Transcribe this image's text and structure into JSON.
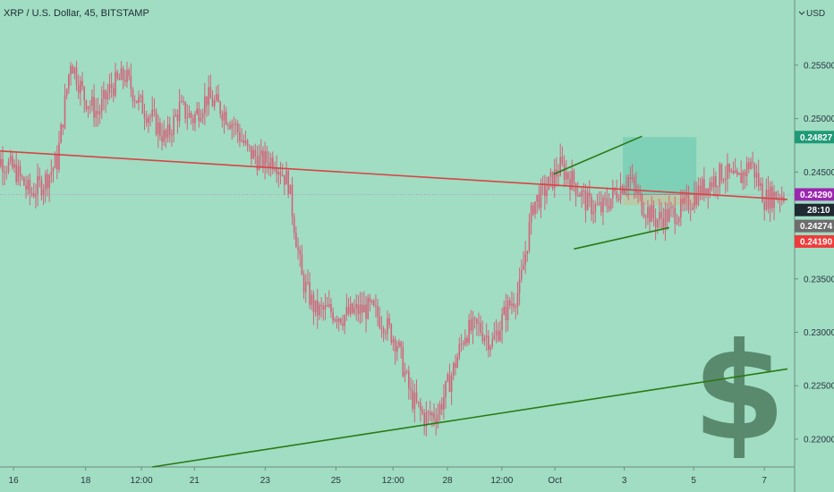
{
  "header": {
    "title": "XRP / U.S. Dollar, 45, BITSTAMP"
  },
  "currency": {
    "label": "USD",
    "dropdown_icon": "chevron-down-icon"
  },
  "colors": {
    "background": "#a0ddc3",
    "candle": "#d2637a",
    "trendline_red": "#d64545",
    "channel_green": "#2a7a14",
    "target_zone": "#7ccfb5",
    "stop_zone": "#b9c9a4",
    "dollar_sign": "#5a8a6e",
    "tag_target": "#1f9a76",
    "tag_current": "#9c27b0",
    "tag_countdown": "#1f2a33",
    "tag_gray": "#6d6d6d",
    "tag_red": "#ef3b3b"
  },
  "chart_data": {
    "type": "candlestick",
    "title": "XRP / U.S. Dollar, 45, BITSTAMP",
    "y_axis": {
      "unit": "USD",
      "range": [
        0.2174,
        0.2611
      ],
      "ticks": [
        "0.25500",
        "0.25000",
        "0.24500",
        "0.24000",
        "0.23500",
        "0.23000",
        "0.22500",
        "0.22000"
      ]
    },
    "x_axis": {
      "ticks": [
        "16",
        "18",
        "12:00",
        "21",
        "23",
        "25",
        "12:00",
        "28",
        "12:00",
        "Oct",
        "3",
        "5",
        "7"
      ]
    },
    "price_path": [
      [
        -1,
        0.2465
      ],
      [
        0,
        0.246
      ],
      [
        1,
        0.245
      ],
      [
        2,
        0.243
      ],
      [
        3,
        0.244
      ],
      [
        4,
        0.246
      ],
      [
        5,
        0.2555
      ],
      [
        6,
        0.252
      ],
      [
        7,
        0.2505
      ],
      [
        8,
        0.253
      ],
      [
        9,
        0.254
      ],
      [
        10,
        0.2515
      ],
      [
        11,
        0.25
      ],
      [
        12,
        0.248
      ],
      [
        13,
        0.251
      ],
      [
        14,
        0.25
      ],
      [
        15,
        0.252
      ],
      [
        16,
        0.251
      ],
      [
        17,
        0.2495
      ],
      [
        18,
        0.247
      ],
      [
        19,
        0.246
      ],
      [
        20,
        0.2462
      ],
      [
        21,
        0.244
      ],
      [
        22,
        0.235
      ],
      [
        23,
        0.232
      ],
      [
        24,
        0.232
      ],
      [
        25,
        0.2315
      ],
      [
        26,
        0.232
      ],
      [
        27,
        0.2322
      ],
      [
        28,
        0.231
      ],
      [
        29,
        0.229
      ],
      [
        30,
        0.224
      ],
      [
        31,
        0.222
      ],
      [
        32,
        0.2225
      ],
      [
        33,
        0.226
      ],
      [
        34,
        0.23
      ],
      [
        35,
        0.2305
      ],
      [
        36,
        0.229
      ],
      [
        37,
        0.232
      ],
      [
        38,
        0.234
      ],
      [
        39,
        0.242
      ],
      [
        40,
        0.2435
      ],
      [
        41,
        0.2455
      ],
      [
        42,
        0.244
      ],
      [
        43,
        0.242
      ],
      [
        44,
        0.2415
      ],
      [
        45,
        0.243
      ],
      [
        46,
        0.2445
      ],
      [
        47,
        0.242
      ],
      [
        48,
        0.2405
      ],
      [
        49,
        0.241
      ],
      [
        50,
        0.2415
      ],
      [
        51,
        0.243
      ],
      [
        52,
        0.244
      ],
      [
        53,
        0.245
      ],
      [
        54,
        0.244
      ],
      [
        55,
        0.246
      ],
      [
        56,
        0.2425
      ],
      [
        57,
        0.2429
      ],
      [
        57.7,
        0.2429
      ]
    ],
    "lines": [
      {
        "name": "resistance-trendline",
        "color": "red",
        "points": [
          [
            -1.2,
            0.24705
          ],
          [
            57.7,
            0.24243
          ]
        ]
      },
      {
        "name": "channel-upper",
        "color": "green",
        "points": [
          [
            40.5,
            0.2448
          ],
          [
            47,
            0.24835
          ]
        ]
      },
      {
        "name": "channel-lower",
        "color": "green",
        "points": [
          [
            42,
            0.2378
          ],
          [
            49,
            0.2398
          ]
        ]
      },
      {
        "name": "support-trendline",
        "color": "green",
        "points": [
          [
            11,
            0.2174
          ],
          [
            57.7,
            0.22657
          ]
        ]
      }
    ],
    "position": {
      "entry": 0.2429,
      "target": 0.24827,
      "stop": 0.2419,
      "x_start": 45.6,
      "x_end": 51
    },
    "price_tags": [
      {
        "name": "target",
        "value": "0.24827",
        "price": 0.24827
      },
      {
        "name": "current",
        "value": "0.24290",
        "price": 0.2429
      },
      {
        "name": "countdown",
        "value": "28:10",
        "price": 0.24145
      },
      {
        "name": "previous",
        "value": "0.24274",
        "price": 0.23995
      },
      {
        "name": "stop",
        "value": "0.24190",
        "price": 0.2385
      }
    ],
    "grid": false,
    "decoration": "dollar sign"
  }
}
